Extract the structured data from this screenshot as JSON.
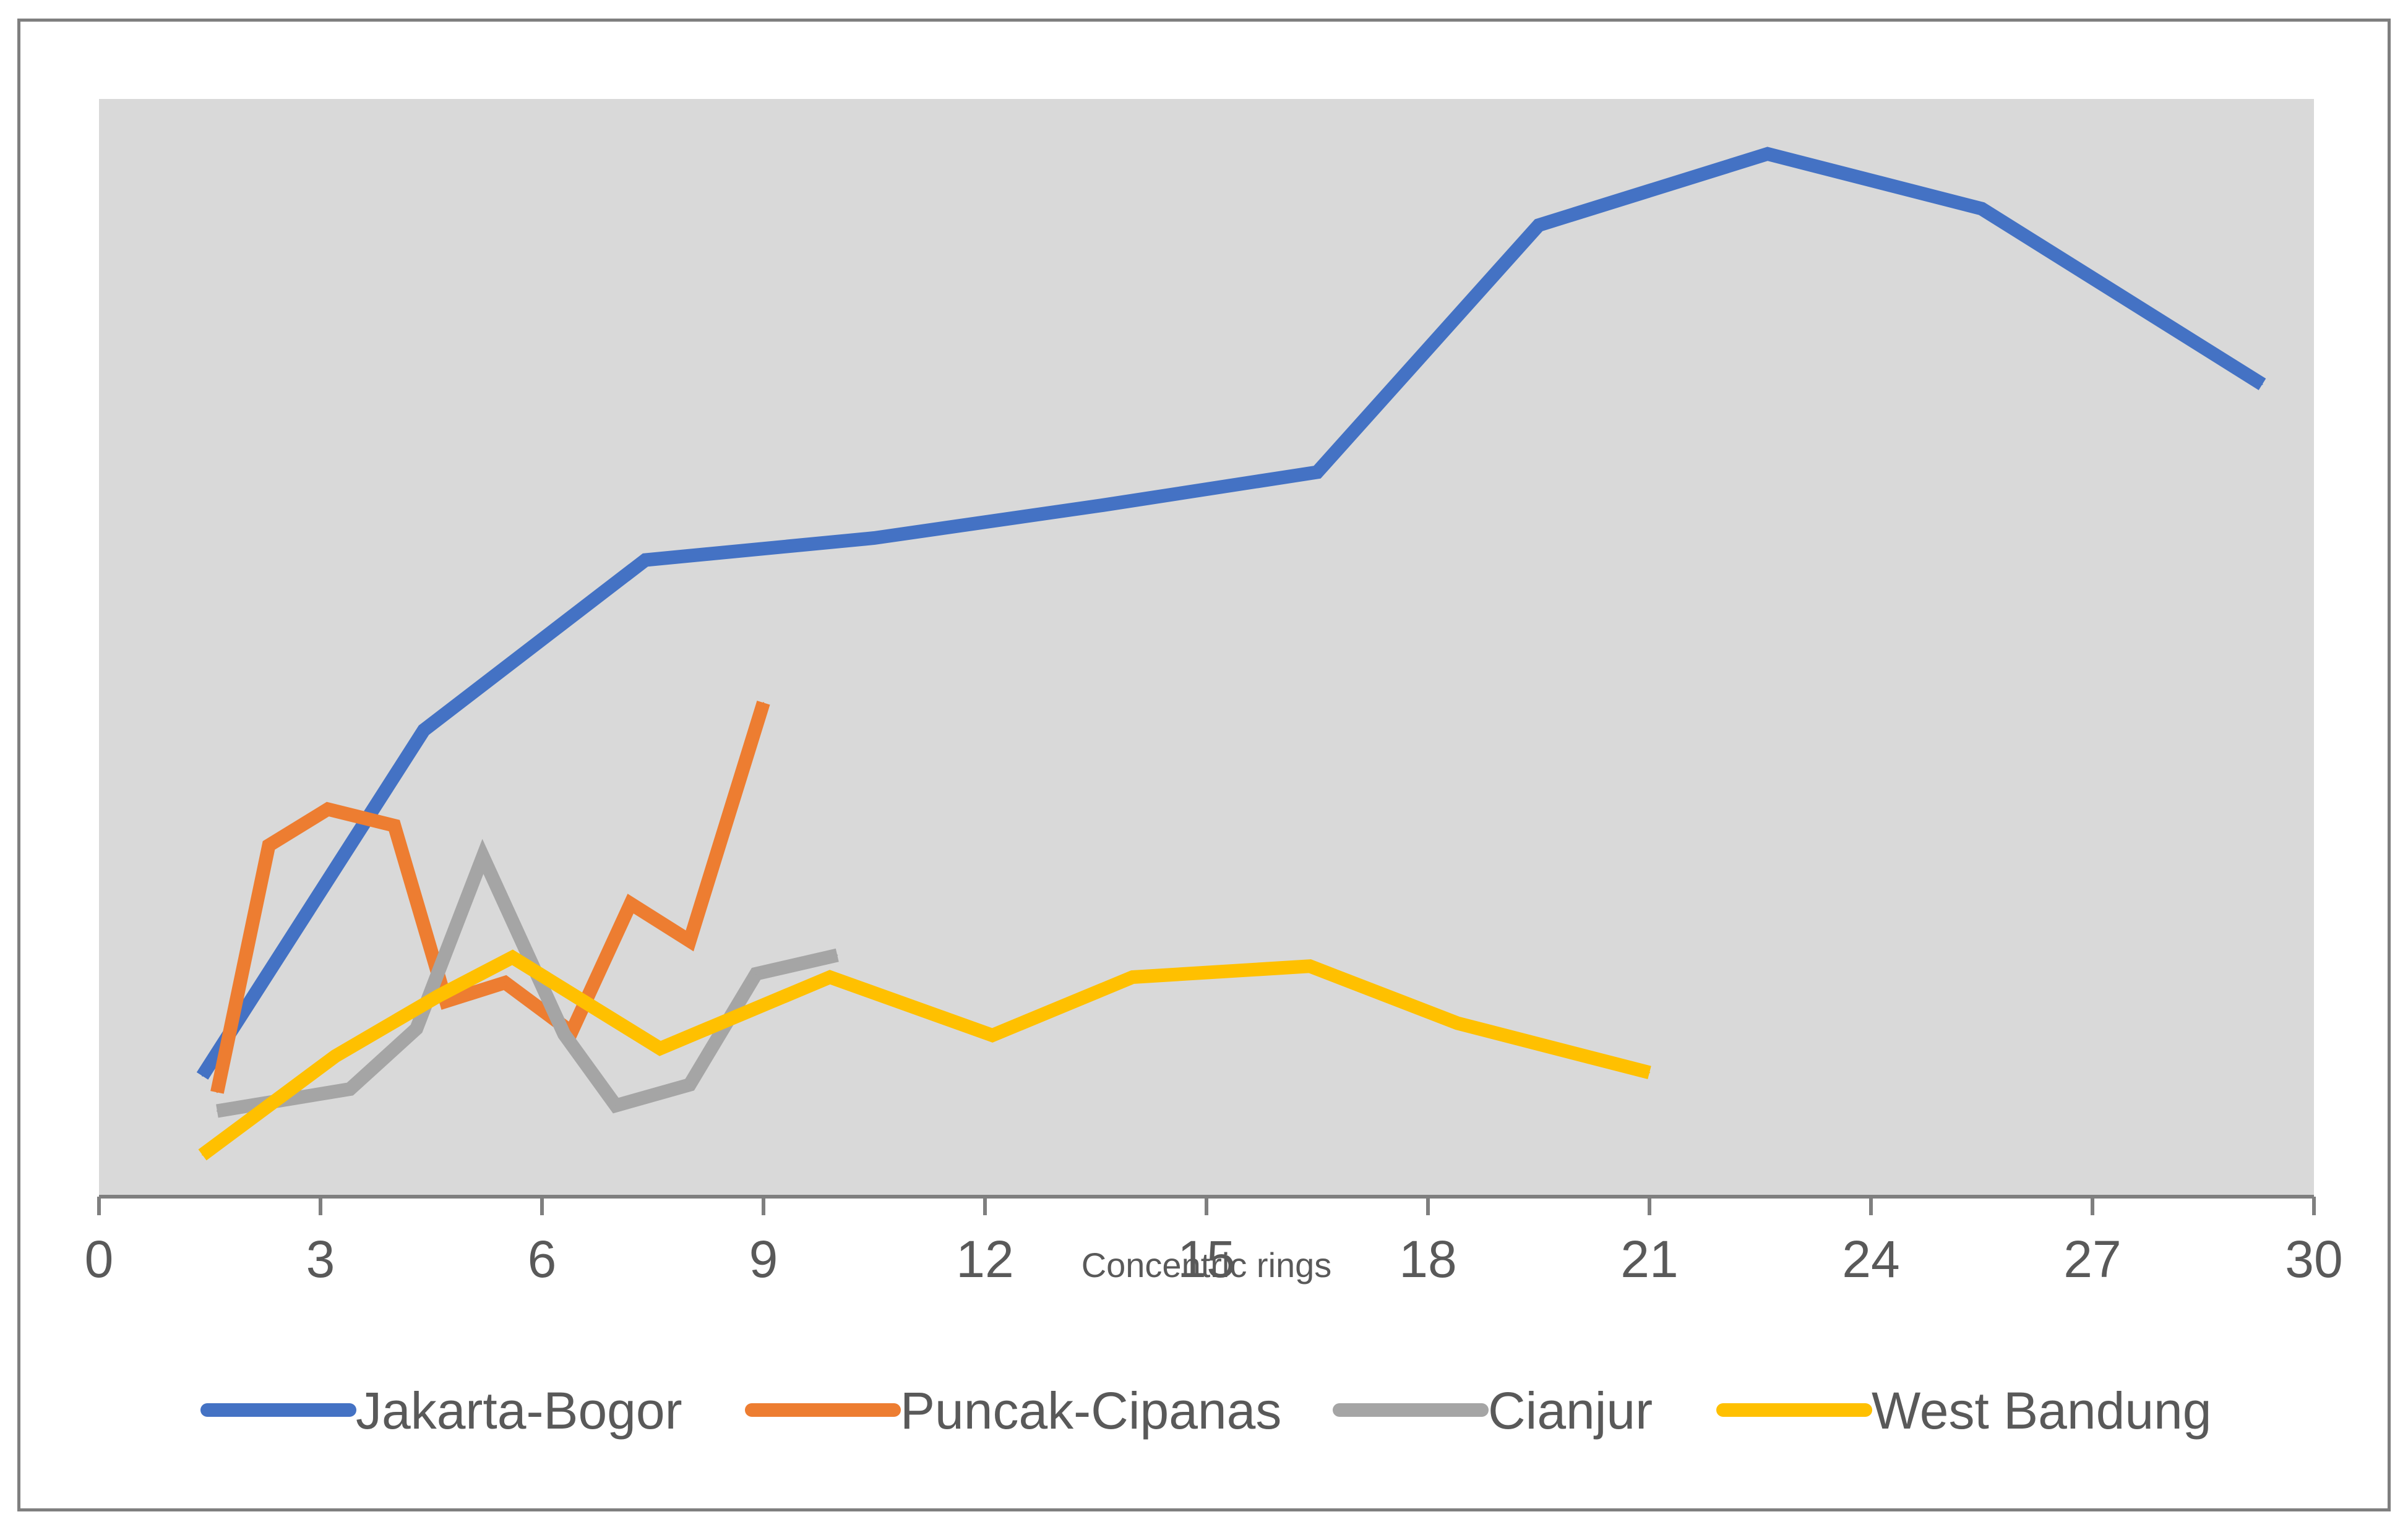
{
  "chart_data": {
    "type": "line",
    "title": "",
    "xlabel": "Concentric rings",
    "ylabel": "",
    "xlim": [
      0,
      30
    ],
    "ylim": [
      0,
      1
    ],
    "x_ticks": [
      "0",
      "3",
      "6",
      "9",
      "12",
      "15",
      "18",
      "21",
      "24",
      "27",
      "30"
    ],
    "grid": false,
    "legend_position": "bottom",
    "plot_background": "#d9d9d9",
    "series": [
      {
        "name": "Jakarta-Bogor",
        "color": "#4472c4",
        "x": [
          1.4,
          4.4,
          7.4,
          10.5,
          13.6,
          16.5,
          19.5,
          22.6,
          25.5,
          29.3
        ],
        "y": [
          0.11,
          0.425,
          0.58,
          0.6,
          0.63,
          0.66,
          0.885,
          0.95,
          0.9,
          0.74
        ]
      },
      {
        "name": "Puncak-Cipanas",
        "color": "#ed7d31",
        "x": [
          1.6,
          2.3,
          3.1,
          4.0,
          4.7,
          5.5,
          6.4,
          7.2,
          8.0,
          9.0
        ],
        "y": [
          0.095,
          0.32,
          0.353,
          0.338,
          0.178,
          0.195,
          0.15,
          0.267,
          0.233,
          0.45
        ]
      },
      {
        "name": "Cianjur",
        "color": "#a5a5a5",
        "x": [
          1.6,
          3.4,
          4.3,
          5.2,
          6.3,
          7.0,
          8.0,
          8.9,
          10.0
        ],
        "y": [
          0.078,
          0.098,
          0.153,
          0.31,
          0.148,
          0.083,
          0.102,
          0.203,
          0.22
        ]
      },
      {
        "name": "West Bandung",
        "color": "#ffc000",
        "x": [
          1.4,
          3.2,
          4.6,
          5.6,
          7.6,
          9.9,
          12.1,
          14.0,
          16.4,
          18.4,
          21.0
        ],
        "y": [
          0.038,
          0.128,
          0.183,
          0.218,
          0.135,
          0.2,
          0.147,
          0.2,
          0.21,
          0.158,
          0.113
        ]
      }
    ]
  }
}
